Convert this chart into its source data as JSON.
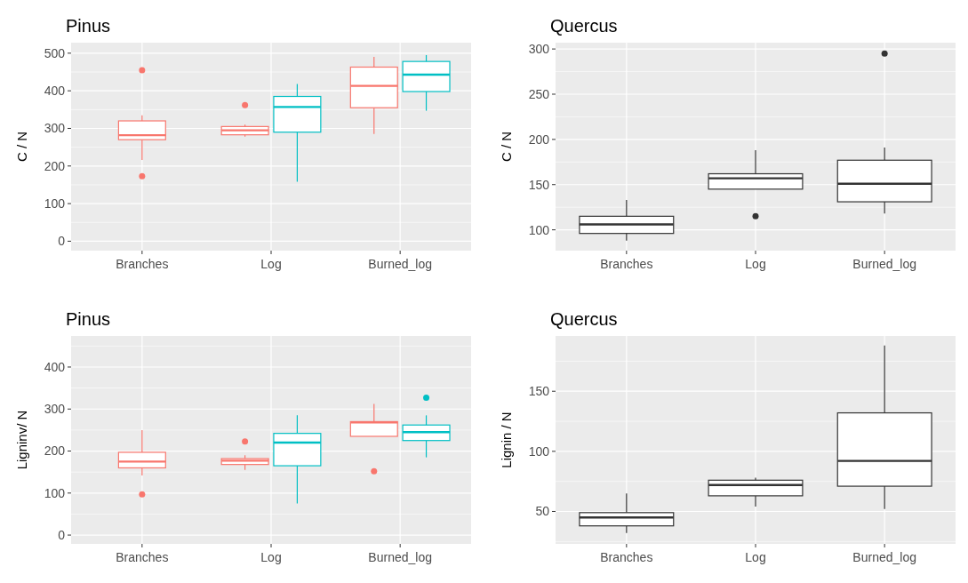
{
  "chart_data": [
    {
      "type": "box",
      "title": "Pinus",
      "ylabel": "C / N",
      "categories": [
        "Branches",
        "Log",
        "Burned_log"
      ],
      "ylim": [
        -25,
        528
      ],
      "yticks": [
        0,
        100,
        200,
        300,
        400,
        500
      ],
      "grid": true,
      "series": [
        {
          "color": "#f8766d",
          "boxes": [
            {
              "low": 216,
              "q1": 270,
              "median": 282,
              "q3": 320,
              "high": 335,
              "outliers": [
                455,
                173
              ]
            },
            {
              "low": 278,
              "q1": 283,
              "median": 295,
              "q3": 305,
              "high": 310,
              "outliers": [
                362
              ]
            },
            {
              "low": 285,
              "q1": 355,
              "median": 413,
              "q3": 463,
              "high": 490
            }
          ]
        },
        {
          "color": "#00bfc4",
          "boxes": [
            null,
            {
              "low": 158,
              "q1": 290,
              "median": 357,
              "q3": 385,
              "high": 418
            },
            {
              "low": 347,
              "q1": 398,
              "median": 443,
              "q3": 478,
              "high": 495
            }
          ]
        }
      ]
    },
    {
      "type": "box",
      "title": "Quercus",
      "ylabel": "C / N",
      "categories": [
        "Branches",
        "Log",
        "Burned_log"
      ],
      "ylim": [
        77,
        307
      ],
      "yticks": [
        100,
        150,
        200,
        250,
        300
      ],
      "grid": true,
      "series": [
        {
          "color": "#333333",
          "boxes": [
            {
              "low": 88,
              "q1": 96,
              "median": 106,
              "q3": 115,
              "high": 133
            },
            {
              "low": 145,
              "q1": 145,
              "median": 157,
              "q3": 162,
              "high": 188,
              "outliers": [
                115
              ]
            },
            {
              "low": 118,
              "q1": 131,
              "median": 151,
              "q3": 177,
              "high": 191,
              "outliers": [
                295
              ]
            }
          ]
        }
      ]
    },
    {
      "type": "box",
      "title": "Pinus",
      "ylabel": "Ligninv/ N",
      "categories": [
        "Branches",
        "Log",
        "Burned_log"
      ],
      "ylim": [
        -21,
        474
      ],
      "yticks": [
        0,
        100,
        200,
        300,
        400
      ],
      "grid": true,
      "series": [
        {
          "color": "#f8766d",
          "boxes": [
            {
              "low": 142,
              "q1": 160,
              "median": 175,
              "q3": 197,
              "high": 250,
              "outliers": [
                97
              ]
            },
            {
              "low": 155,
              "q1": 168,
              "median": 177,
              "q3": 182,
              "high": 190,
              "outliers": [
                223
              ]
            },
            {
              "low": 235,
              "q1": 235,
              "median": 268,
              "q3": 270,
              "high": 312,
              "outliers": [
                152
              ]
            }
          ]
        },
        {
          "color": "#00bfc4",
          "boxes": [
            null,
            {
              "low": 75,
              "q1": 165,
              "median": 220,
              "q3": 242,
              "high": 285
            },
            {
              "low": 185,
              "q1": 225,
              "median": 245,
              "q3": 262,
              "high": 285,
              "outliers": [
                327
              ]
            }
          ]
        }
      ]
    },
    {
      "type": "box",
      "title": "Quercus",
      "ylabel": "Lignin / N",
      "categories": [
        "Branches",
        "Log",
        "Burned_log"
      ],
      "ylim": [
        23,
        196
      ],
      "yticks": [
        50,
        100,
        150
      ],
      "grid": true,
      "series": [
        {
          "color": "#333333",
          "boxes": [
            {
              "low": 32,
              "q1": 38,
              "median": 45,
              "q3": 49,
              "high": 65
            },
            {
              "low": 54,
              "q1": 63,
              "median": 72,
              "q3": 76,
              "high": 78
            },
            {
              "low": 52,
              "q1": 71,
              "median": 92,
              "q3": 132,
              "high": 188
            }
          ]
        }
      ]
    }
  ]
}
